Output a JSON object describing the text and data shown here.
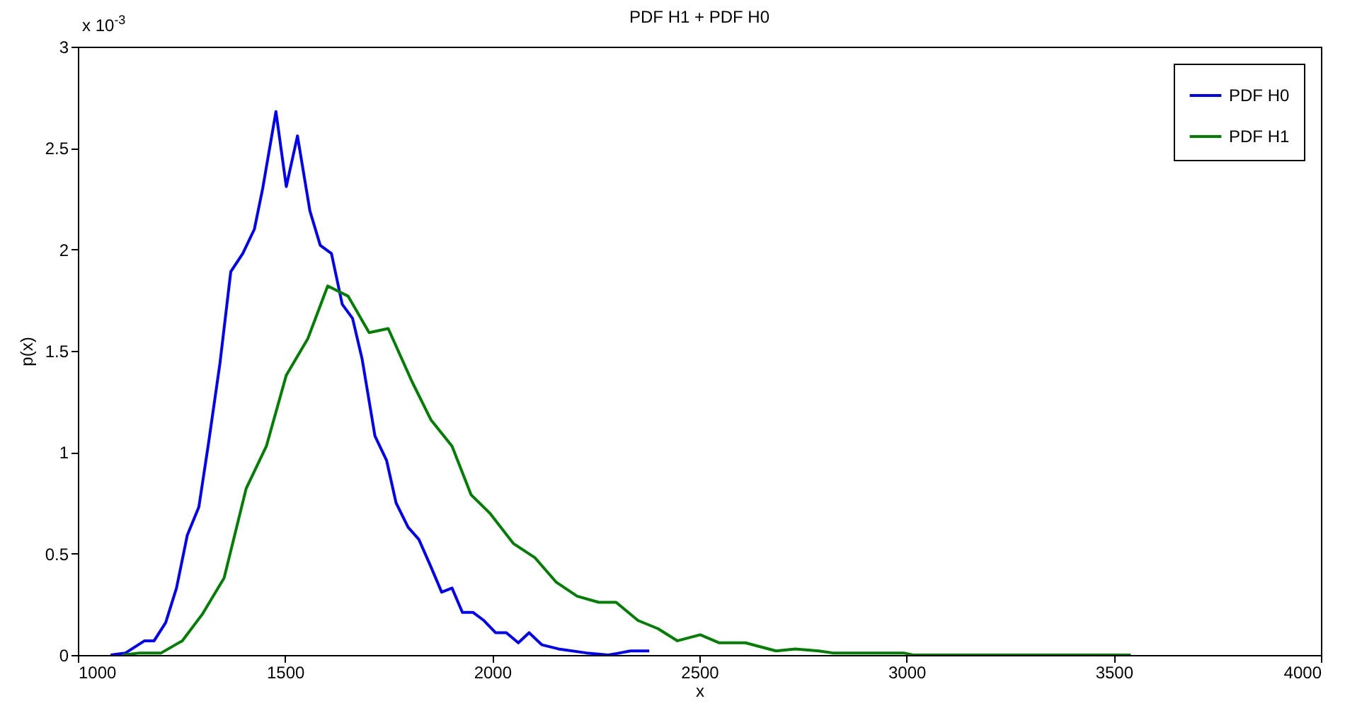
{
  "chart_data": {
    "type": "line",
    "title": "PDF H1 + PDF H0",
    "xlabel": "x",
    "ylabel": "p(x)",
    "annotations": [
      "x 10$^{-3}$"
    ],
    "xlim": [
      1000,
      4000
    ],
    "xticks": [
      1000,
      1500,
      2000,
      2500,
      3000,
      3500,
      4000
    ],
    "ylim": [
      0,
      3
    ],
    "yticks": [
      0,
      0.5,
      1,
      1.5,
      2,
      2.5,
      3
    ],
    "legend": "top right",
    "grid": false,
    "series": [
      {
        "name": "PDF H0",
        "color": "#0000ff",
        "x": [
          1079,
          1115,
          1161,
          1184,
          1212,
          1238,
          1264,
          1292,
          1315,
          1343,
          1369,
          1398,
          1426,
          1446,
          1478,
          1503,
          1530,
          1560,
          1585,
          1612,
          1638,
          1663,
          1686,
          1717,
          1745,
          1768,
          1797,
          1823,
          1851,
          1878,
          1903,
          1928,
          1954,
          1980,
          2008,
          2034,
          2063,
          2089,
          2120,
          2160,
          2228,
          2280,
          2308,
          2333,
          2379
        ],
        "values": [
          0.0,
          0.01,
          0.07,
          0.07,
          0.16,
          0.33,
          0.59,
          0.73,
          1.04,
          1.44,
          1.89,
          1.98,
          2.1,
          2.3,
          2.68,
          2.31,
          2.56,
          2.19,
          2.02,
          1.98,
          1.73,
          1.66,
          1.46,
          1.08,
          0.96,
          0.75,
          0.63,
          0.57,
          0.44,
          0.31,
          0.33,
          0.21,
          0.21,
          0.17,
          0.11,
          0.11,
          0.06,
          0.11,
          0.05,
          0.03,
          0.01,
          0.0,
          0.01,
          0.02,
          0.02
        ]
      },
      {
        "name": "PDF H1",
        "color": "#008000",
        "x": [
          1109,
          1149,
          1201,
          1252,
          1300,
          1353,
          1406,
          1455,
          1503,
          1555,
          1603,
          1652,
          1703,
          1749,
          1806,
          1852,
          1903,
          1949,
          1994,
          2051,
          2103,
          2154,
          2205,
          2257,
          2299,
          2352,
          2400,
          2447,
          2502,
          2548,
          2611,
          2685,
          2731,
          2788,
          2822,
          2993,
          3016,
          3541
        ],
        "values": [
          0.0,
          0.01,
          0.01,
          0.07,
          0.2,
          0.38,
          0.82,
          1.03,
          1.38,
          1.56,
          1.82,
          1.77,
          1.59,
          1.61,
          1.35,
          1.16,
          1.03,
          0.79,
          0.7,
          0.55,
          0.48,
          0.36,
          0.29,
          0.26,
          0.26,
          0.17,
          0.13,
          0.07,
          0.1,
          0.06,
          0.06,
          0.02,
          0.03,
          0.02,
          0.01,
          0.01,
          0.0,
          0.0
        ]
      }
    ]
  }
}
